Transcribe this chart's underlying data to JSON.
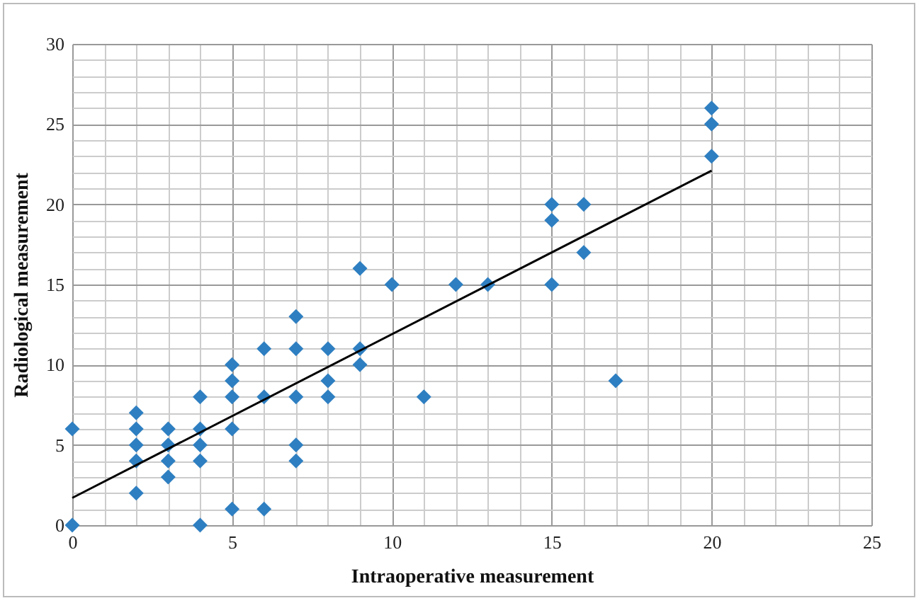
{
  "chart_data": {
    "type": "scatter",
    "xlabel": "Intraoperative measurement",
    "ylabel": "Radiological measurement",
    "xlim": [
      0,
      25
    ],
    "ylim": [
      0,
      30
    ],
    "xticks": [
      0,
      5,
      10,
      15,
      20,
      25
    ],
    "yticks": [
      0,
      5,
      10,
      15,
      20,
      25,
      30
    ],
    "grid": true,
    "marker": "diamond",
    "series": [
      {
        "color": "#2e7fc1",
        "x": [
          0,
          0,
          2,
          2,
          2,
          2,
          2,
          3,
          3,
          3,
          3,
          4,
          4,
          4,
          4,
          4,
          5,
          5,
          5,
          5,
          5,
          6,
          6,
          6,
          7,
          7,
          7,
          7,
          7,
          8,
          8,
          8,
          9,
          9,
          9,
          10,
          11,
          12,
          13,
          15,
          15,
          15,
          16,
          16,
          17,
          20,
          20,
          20
        ],
        "values": [
          0,
          6,
          2,
          4,
          5,
          6,
          7,
          3,
          4,
          5,
          6,
          0,
          4,
          5,
          6,
          8,
          1,
          6,
          8,
          9,
          10,
          1,
          8,
          11,
          4,
          5,
          8,
          11,
          13,
          8,
          9,
          11,
          10,
          11,
          16,
          15,
          8,
          15,
          15,
          15,
          19,
          20,
          17,
          20,
          9,
          23,
          25,
          26
        ]
      },
      {
        "type": "line",
        "color": "#000000",
        "marker": "none",
        "x": [
          0,
          20
        ],
        "values": [
          1.7,
          22.1
        ]
      }
    ]
  }
}
